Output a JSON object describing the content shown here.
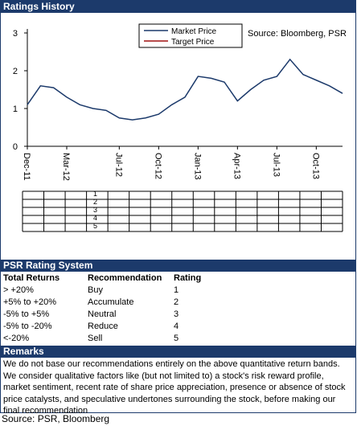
{
  "chart_data": {
    "type": "line",
    "title": "Ratings History",
    "annotation": "Source: Bloomberg, PSR",
    "categories": [
      "Dec-11",
      null,
      null,
      "Mar-12",
      null,
      null,
      null,
      "Jul-12",
      null,
      null,
      "Oct-12",
      null,
      null,
      "Jan-13",
      null,
      null,
      "Apr-13",
      null,
      null,
      "Jul-13",
      null,
      null,
      "Oct-13",
      null,
      null
    ],
    "series": [
      {
        "name": "Market Price",
        "color": "#1c3a6b",
        "values": [
          1.1,
          1.6,
          1.55,
          1.3,
          1.1,
          1.0,
          0.95,
          0.75,
          0.7,
          0.75,
          0.85,
          1.1,
          1.3,
          1.85,
          1.8,
          1.7,
          1.2,
          1.5,
          1.75,
          1.85,
          2.3,
          1.9,
          1.75,
          1.6,
          1.4
        ]
      },
      {
        "name": "Target Price",
        "color": "#a01010",
        "values": [
          null,
          null,
          null,
          null,
          null,
          null,
          null,
          null,
          null,
          null,
          null,
          null,
          null,
          null,
          null,
          null,
          null,
          null,
          null,
          null,
          null,
          null,
          null,
          null,
          null
        ]
      }
    ],
    "ylim": [
      0,
      3
    ],
    "yticks": [
      0,
      1,
      2,
      3
    ]
  },
  "rating_grid": {
    "row_labels": [
      "1",
      "2",
      "3",
      "4",
      "5"
    ]
  },
  "rating_system": {
    "title": "PSR Rating System",
    "columns": [
      "Total Returns",
      "Recommendation",
      "Rating"
    ],
    "rows": [
      [
        "> +20%",
        "Buy",
        1
      ],
      [
        "+5% to +20%",
        "Accumulate",
        2
      ],
      [
        "-5% to +5%",
        "Neutral",
        3
      ],
      [
        "-5% to -20%",
        "Reduce",
        4
      ],
      [
        "<-20%",
        "Sell",
        5
      ]
    ]
  },
  "remarks": {
    "title": "Remarks",
    "text": "We do not base our recommendations entirely on the  above quantitative return bands. We consider qualitative factors like (but not limited to) a stock's risk reward profile, market sentiment, recent rate of share price appreciation, presence or absence of stock price catalysts, and speculative undertones surrounding the stock, before making our final recommendation"
  },
  "source": "Source: PSR, Bloomberg"
}
